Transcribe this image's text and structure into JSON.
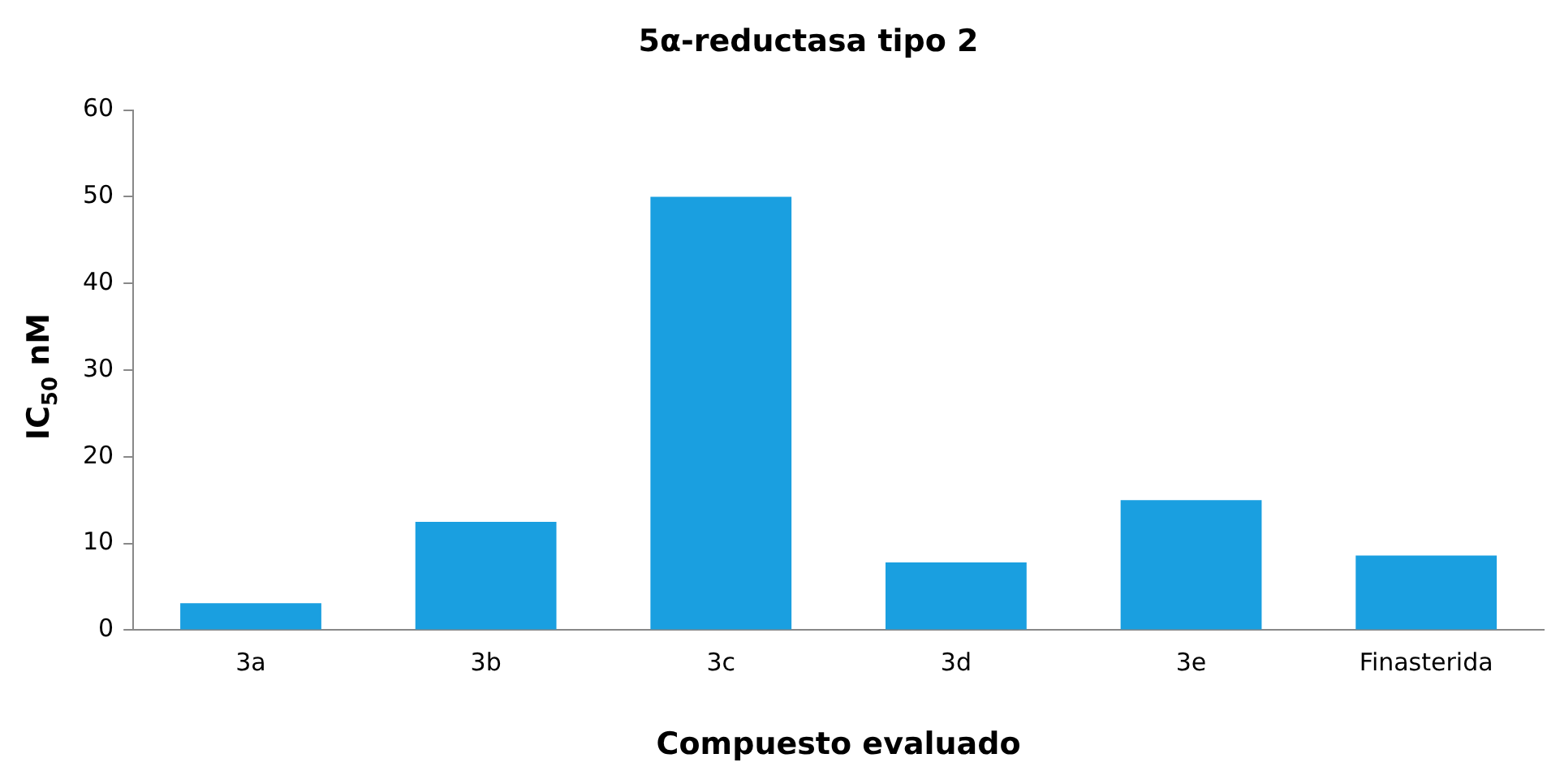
{
  "chart_data": {
    "type": "bar",
    "title": "5α-reductasa tipo 2",
    "xlabel": "Compuesto evaluado",
    "ylabel": "IC$_{50}$  nM",
    "categories": [
      "3a",
      "3b",
      "3c",
      "3d",
      "3e",
      "Finasterida"
    ],
    "values": [
      3.1,
      12.5,
      50,
      7.8,
      15,
      8.6
    ],
    "color": "#1a9fe0",
    "ylim": [
      0,
      60
    ],
    "yticks": [
      0,
      10,
      20,
      30,
      40,
      50,
      60
    ],
    "grid": false,
    "legend": false
  }
}
